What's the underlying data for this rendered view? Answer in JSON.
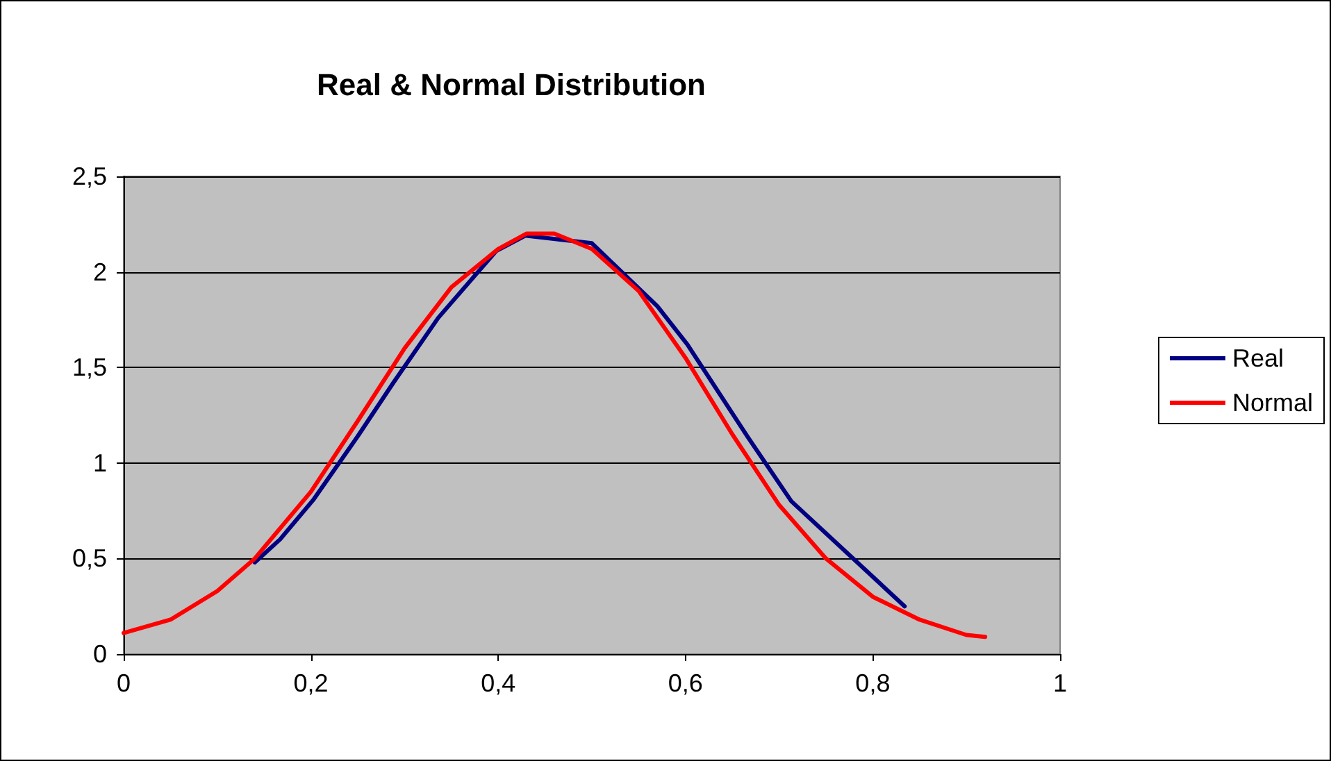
{
  "chart_data": {
    "type": "line",
    "title": "Real & Normal Distribution",
    "xlim": [
      0,
      1
    ],
    "xticks": [
      0,
      {
        "value": 0.2,
        "label": "0,2"
      },
      {
        "value": 0.4,
        "label": "0,4"
      },
      {
        "value": 0.6,
        "label": "0,6"
      },
      {
        "value": 0.8,
        "label": "0,8"
      },
      1
    ],
    "ylim": [
      0,
      2.5
    ],
    "yticks": [
      0,
      {
        "value": 0.5,
        "label": "0,5"
      },
      1,
      {
        "value": 1.5,
        "label": "1,5"
      },
      2,
      {
        "value": 2.5,
        "label": "2,5"
      }
    ],
    "grid": "y",
    "legend": "right",
    "marker": "none",
    "line_style": "solid",
    "series": [
      {
        "name": "Real",
        "color": "#000080",
        "x": [
          0.14,
          0.167,
          0.203,
          0.25,
          0.288,
          0.336,
          0.398,
          0.429,
          0.5,
          0.57,
          0.602,
          0.666,
          0.713,
          0.834
        ],
        "values": [
          0.48,
          0.6,
          0.81,
          1.14,
          1.42,
          1.76,
          2.11,
          2.19,
          2.15,
          1.82,
          1.62,
          1.14,
          0.8,
          0.25
        ]
      },
      {
        "name": "Normal",
        "color": "#ff0000",
        "x": [
          0,
          0.05,
          0.1,
          0.14,
          0.2,
          0.25,
          0.3,
          0.35,
          0.4,
          0.43,
          0.46,
          0.5,
          0.55,
          0.6,
          0.65,
          0.7,
          0.75,
          0.8,
          0.85,
          0.9,
          0.92
        ],
        "values": [
          0.11,
          0.18,
          0.33,
          0.5,
          0.85,
          1.22,
          1.6,
          1.92,
          2.12,
          2.2,
          2.2,
          2.12,
          1.9,
          1.55,
          1.15,
          0.78,
          0.5,
          0.3,
          0.18,
          0.1,
          0.09
        ]
      }
    ]
  }
}
